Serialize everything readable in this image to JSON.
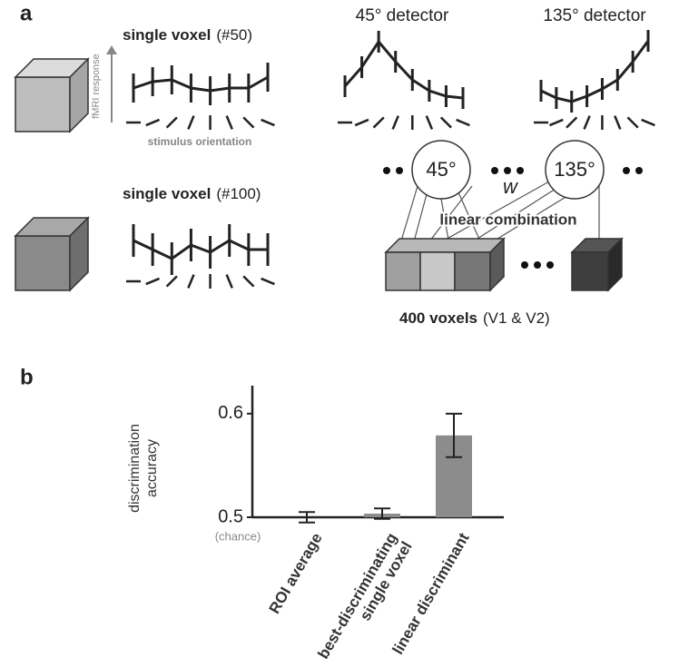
{
  "panel_a": {
    "label": "a",
    "voxel_50": {
      "title": "single voxel",
      "id": "(#50)"
    },
    "y_axis": "fMRI response",
    "x_axis": "stimulus orientation",
    "detector_45": "45° detector",
    "detector_135": "135° detector",
    "unit_45": "45°",
    "unit_135": "135°",
    "weight": "w",
    "combination": "linear combination",
    "voxel_100": {
      "title": "single voxel",
      "id": "(#100)"
    },
    "voxels": {
      "title": "400 voxels",
      "region": "(V1 & V2)"
    }
  },
  "panel_b_label": "b",
  "chart_data": {
    "type": "bar",
    "y_label": "discrimination\naccuracy",
    "categories": [
      "ROI average",
      "best-discriminating\nsingle voxel",
      "linear discriminant"
    ],
    "values": [
      0.5,
      0.5035,
      0.579
    ],
    "errors": [
      0.005,
      0.005,
      0.021
    ],
    "color": "#8c8c8c",
    "ylim": [
      0.5,
      0.627
    ],
    "yticks": [
      0.5,
      0.6
    ],
    "annotation": "(chance)"
  }
}
